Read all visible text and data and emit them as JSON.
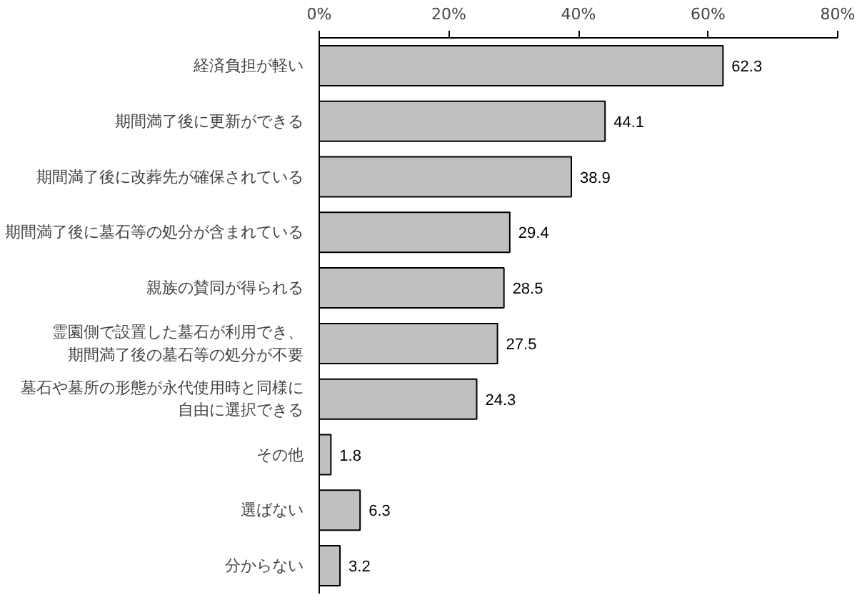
{
  "chart_data": {
    "type": "bar",
    "orientation": "horizontal",
    "categories": [
      "経済負担が軽い",
      "期間満了後に更新ができる",
      "期間満了後に改葬先が確保されている",
      "期間満了後に墓石等の処分が含まれている",
      "親族の賛同が得られる",
      "霊園側で設置した墓石が利用でき、期間満了後の墓石等の処分が不要",
      "墓石や墓所の形態が永代使用時と同様に自由に選択できる",
      "その他",
      "選ばない",
      "分からない"
    ],
    "values": [
      62.3,
      44.1,
      38.9,
      29.4,
      28.5,
      27.5,
      24.3,
      1.8,
      6.3,
      3.2
    ],
    "color": "#c0c0c0",
    "xlim": [
      0,
      80
    ],
    "xticks": [
      {
        "value": 0,
        "label": "0%"
      },
      {
        "value": 20,
        "label": "20%"
      },
      {
        "value": 40,
        "label": "40%"
      },
      {
        "value": 60,
        "label": "60%"
      },
      {
        "value": 80,
        "label": "80%"
      }
    ],
    "data_labels": true,
    "grid": false
  }
}
